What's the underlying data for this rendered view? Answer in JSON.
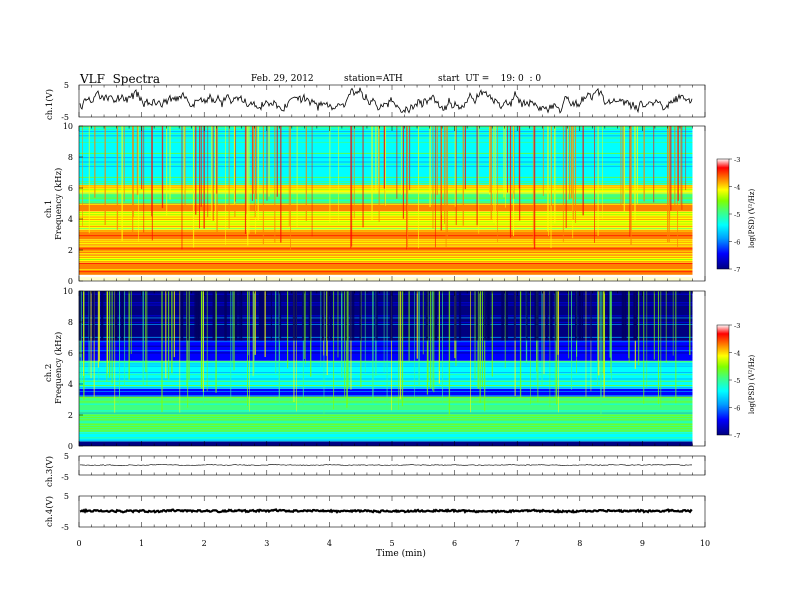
{
  "header": {
    "title": "VLF  Spectra",
    "date": "Feb. 29, 2012",
    "station": "station=ATH",
    "start": "start  UT =    19: 0  : 0"
  },
  "panels": {
    "ch1v_label": "ch.1(V)",
    "ch1_label_a": "ch.1",
    "ch1_label_b": "Frequency (kHz)",
    "ch2_label_a": "ch.2",
    "ch2_label_b": "Frequency (kHz)",
    "ch3v_label": "ch.3(V)",
    "ch4v_label": "ch.4(V)",
    "colorbar_label": "log(PSD) (V²/Hz)"
  },
  "chart_data": {
    "type": "heatmap",
    "xlabel": "Time  (min)",
    "xlim": [
      0,
      10
    ],
    "xticks": [
      "0",
      "1",
      "2",
      "3",
      "4",
      "5",
      "6",
      "7",
      "8",
      "9",
      "10"
    ],
    "data_end_min": 9.8,
    "waveform_yticks": [
      "5",
      "-5"
    ],
    "waveform_ylim": [
      -5,
      5
    ],
    "freq_yticks": [
      "0",
      "2",
      "4",
      "6",
      "8",
      "10"
    ],
    "freq_ylim_khz": [
      0,
      10
    ],
    "colorbar_ticks": [
      "-3",
      "-4",
      "-5",
      "-6",
      "-7"
    ],
    "colorbar_range": [
      -7,
      -3
    ],
    "colormap": [
      "#000080",
      "#0000ff",
      "#00a0ff",
      "#00ffff",
      "#40ff80",
      "#80ff00",
      "#ffff00",
      "#ff8000",
      "#ff0000",
      "#ffffff"
    ],
    "ch1_bands": [
      {
        "f0": 0.0,
        "f1": 0.4,
        "level": -3.4
      },
      {
        "f0": 0.4,
        "f1": 1.2,
        "level": -4.1
      },
      {
        "f0": 1.2,
        "f1": 1.7,
        "level": -4.5
      },
      {
        "f0": 1.7,
        "f1": 2.3,
        "level": -3.9
      },
      {
        "f0": 2.3,
        "f1": 2.7,
        "level": -4.4
      },
      {
        "f0": 2.7,
        "f1": 3.3,
        "level": -4.0
      },
      {
        "f0": 3.3,
        "f1": 4.5,
        "level": -4.6
      },
      {
        "f0": 4.5,
        "f1": 5.0,
        "level": -3.9
      },
      {
        "f0": 5.0,
        "f1": 5.7,
        "level": -5.2
      },
      {
        "f0": 5.7,
        "f1": 6.2,
        "level": -4.6
      },
      {
        "f0": 6.2,
        "f1": 10.0,
        "level": -5.4
      }
    ],
    "ch2_bands": [
      {
        "f0": 0.0,
        "f1": 0.3,
        "level": -6.9
      },
      {
        "f0": 0.3,
        "f1": 0.9,
        "level": -5.6
      },
      {
        "f0": 0.9,
        "f1": 3.2,
        "level": -5.3
      },
      {
        "f0": 3.2,
        "f1": 3.7,
        "level": -6.5
      },
      {
        "f0": 3.7,
        "f1": 5.5,
        "level": -5.4
      },
      {
        "f0": 5.5,
        "f1": 6.8,
        "level": -6.2
      },
      {
        "f0": 6.8,
        "f1": 10.0,
        "level": -6.7
      }
    ]
  }
}
